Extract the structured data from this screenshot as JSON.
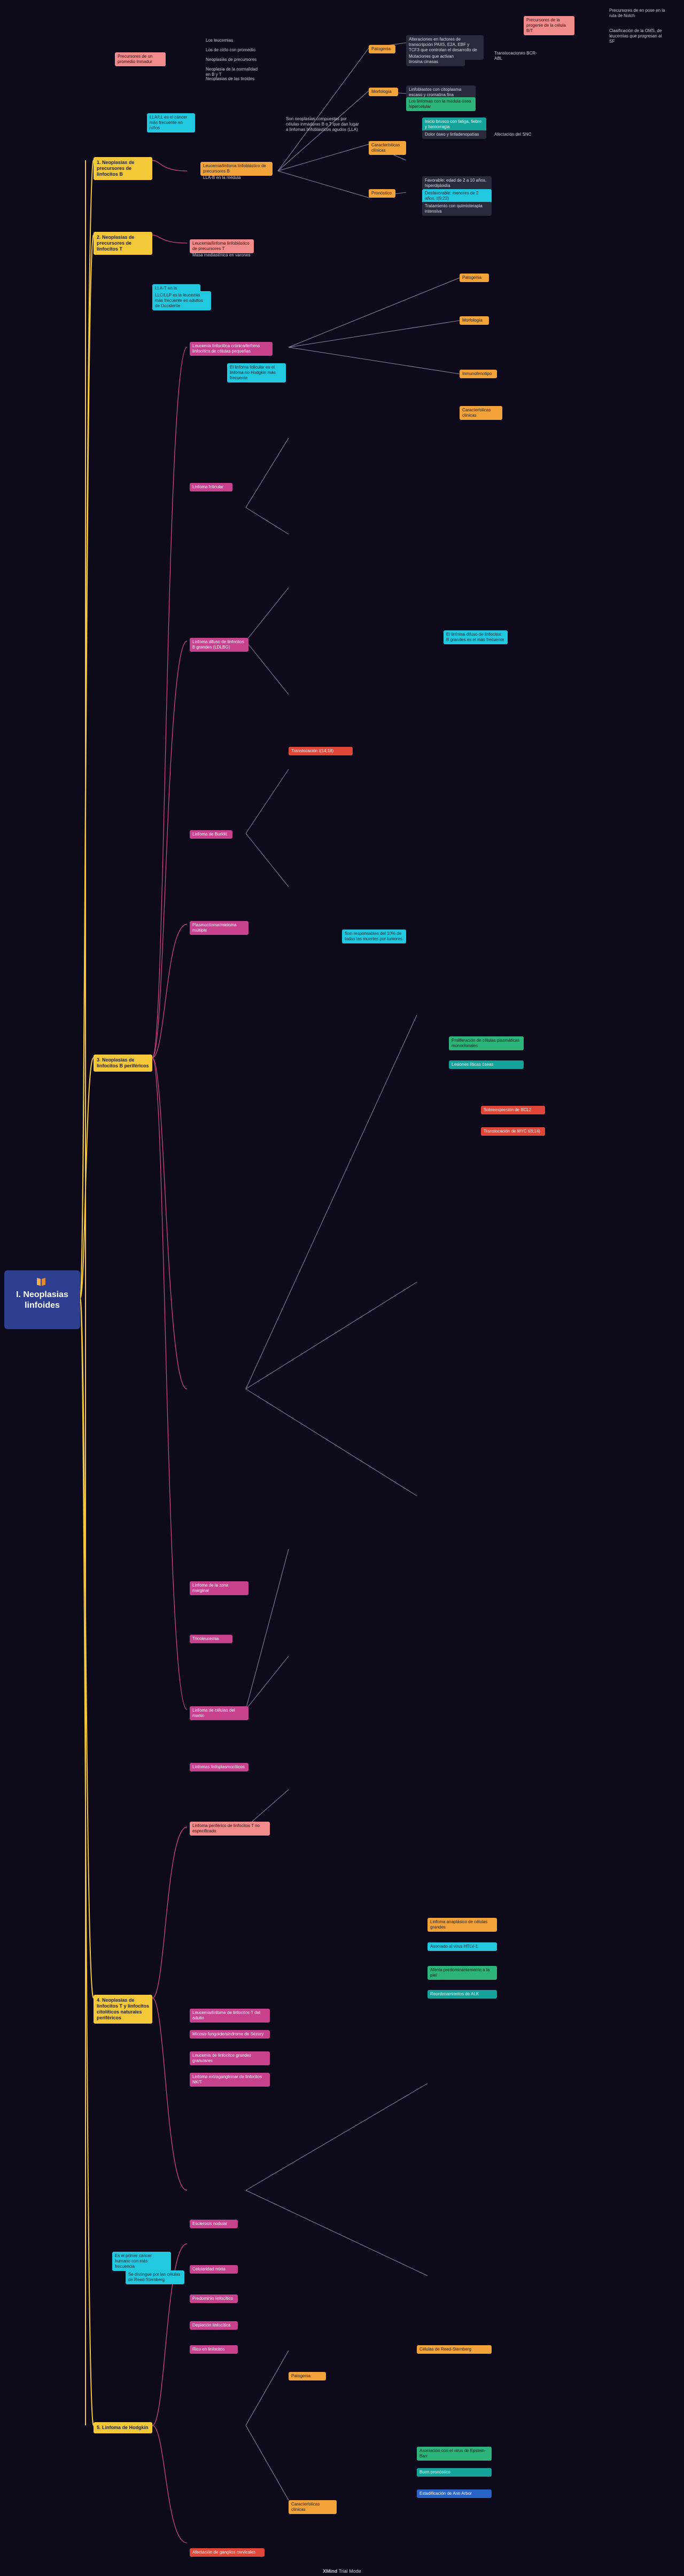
{
  "root": {
    "title": "I. Neoplasias linfoides"
  },
  "sections": [
    {
      "id": "s1",
      "label": "1. Neoplasias de precursores de linfocitos B"
    },
    {
      "id": "s2",
      "label": "2. Neoplasias de precursores de linfocitos T"
    },
    {
      "id": "s3",
      "label": "3. Neoplasias de linfocitos B periféricos"
    },
    {
      "id": "s4",
      "label": "4. Neoplasias de linfocitos T y linfocitos citolíticos naturales periféricos"
    },
    {
      "id": "s5",
      "label": "5. Linfoma de Hodgkin"
    }
  ],
  "nodes": [
    {
      "id": "top_intro",
      "text": "Precursores de la progenie de la célula B/T"
    },
    {
      "id": "top_intro_r1",
      "text": "Precursores de en pose en la ruta de Notch"
    },
    {
      "id": "top_intro_r2",
      "text": "Clasificación de la OMS, de leucemias que progresan al SF"
    },
    {
      "id": "tl_pink",
      "text": "Precursores de un promedio Inmadur"
    },
    {
      "id": "tl_a",
      "text": "Los leucemias"
    },
    {
      "id": "tl_b",
      "text": "Los de ciclo con promedio"
    },
    {
      "id": "tl_c",
      "text": "Neoplasias de precursores"
    },
    {
      "id": "tl_d",
      "text": "Neoplasia de la normalidad en B y T"
    },
    {
      "id": "tl_e",
      "text": "Neoplasias de las tiroides"
    },
    {
      "id": "s1_cyan",
      "text": "LLA/LL es el cáncer más frecuente en niños"
    },
    {
      "id": "s1_orange",
      "text": "Leucemia/linfoma linfoblástico de precursores B"
    },
    {
      "id": "s1_lbl",
      "text": "LLA-B en la médula"
    },
    {
      "id": "s1_desc",
      "text": "Son neoplasias compuestas por células inmaduras B o T que dan lugar a linfomas linfoblásticos agudos (LLA)"
    },
    {
      "id": "s1_p1",
      "text": "Patogenia"
    },
    {
      "id": "s1_p1a",
      "text": "Alteraciones en factores de transcripción PAX5, E2A, EBF y TCF3 que controlan el desarrollo de precursores"
    },
    {
      "id": "s1_p1b",
      "text": "Mutaciones que activan tirosina cinasas"
    },
    {
      "id": "s1_p1c",
      "text": "Translocaciones BCR-ABL"
    },
    {
      "id": "s1_p2",
      "text": "Morfología"
    },
    {
      "id": "s1_p2a",
      "text": "Linfoblastos con citoplasma escaso y cromatina fina"
    },
    {
      "id": "s1_p2b",
      "text": "Los linfomas con la médula ósea hipercelular"
    },
    {
      "id": "s1_p3",
      "text": "Características clínicas"
    },
    {
      "id": "s1_p3a",
      "text": "Inicio brusco con fatiga, fiebre y hemorragia"
    },
    {
      "id": "s1_p3b",
      "text": "Dolor óseo y linfadenopatías"
    },
    {
      "id": "s1_p3c",
      "text": "Afectación del SNC"
    },
    {
      "id": "s1_p4",
      "text": "Pronóstico"
    },
    {
      "id": "s1_p4a",
      "text": "Favorable: edad de 2 a 10 años, hiperdiploidía"
    },
    {
      "id": "s1_p4b",
      "text": "Desfavorable: menores de 2 años, t(9;22)"
    },
    {
      "id": "s1_p4c",
      "text": "Tratamiento con quimioterapia intensiva"
    },
    {
      "id": "s2_cyan",
      "text": "LLA-T en la adolescencia"
    },
    {
      "id": "s2_orange",
      "text": "Leucemia/linfoma linfoblástico de precursores T"
    },
    {
      "id": "s2_lbl",
      "text": "Masa mediastínica en varones"
    },
    {
      "id": "s3_cyan",
      "text": "LLC/LLP es la leucemia más frecuente en adultos de Occidente"
    },
    {
      "id": "s3_magenta",
      "text": "Leucemia linfocítica crónica/linfoma linfocítico de células pequeñas"
    },
    {
      "id": "s3_cyan2",
      "text": "El linfoma folicular es el linfoma no Hodgkin más frecuente"
    },
    {
      "id": "s3_a",
      "text": "Patogenia"
    },
    {
      "id": "s3_b",
      "text": "Morfología"
    },
    {
      "id": "s3_c",
      "text": "Inmunofenotipo"
    },
    {
      "id": "s3_d",
      "text": "Características clínicas"
    },
    {
      "id": "s3_e",
      "text": "Linfoma folicular"
    },
    {
      "id": "s3_f",
      "text": "Linfoma difuso de linfocitos B grandes (LDLBG)"
    },
    {
      "id": "s3_g",
      "text": "Linfoma de Burkitt"
    },
    {
      "id": "s3_h",
      "text": "Plasmocitoma/mieloma múltiple"
    },
    {
      "id": "s3_i",
      "text": "Linfoma de la zona marginal"
    },
    {
      "id": "s3_j",
      "text": "Tricoleucemia"
    },
    {
      "id": "s3_k",
      "text": "Linfoma de células del manto"
    },
    {
      "id": "s3_l",
      "text": "Linfomas linfoplasmocíticos"
    },
    {
      "id": "s3_cyan3",
      "text": "Son responsables del 10% de todas las muertes por tumores"
    },
    {
      "id": "s3_red1",
      "text": "Translocación t(14;18)"
    },
    {
      "id": "s3_red2",
      "text": "Sobreexpresión de BCL2"
    },
    {
      "id": "s3_red3",
      "text": "Translocación de MYC t(8;14)"
    },
    {
      "id": "s3_green1",
      "text": "Proliferación de células plasmáticas monoclonales"
    },
    {
      "id": "s3_teal1",
      "text": "Lesiones líticas óseas"
    },
    {
      "id": "s3_cyan4",
      "text": "El linfoma difuso de linfocitos B grandes es el más frecuente"
    },
    {
      "id": "s4_pink",
      "text": "Linfoma periférico de linfocitos T no especificado"
    },
    {
      "id": "s4_a",
      "text": "Leucemia/linfoma de linfocitos T del adulto"
    },
    {
      "id": "s4_b",
      "text": "Micosis fungoide/síndrome de Sézary"
    },
    {
      "id": "s4_c",
      "text": "Leucemia de linfocitos grandes granulares"
    },
    {
      "id": "s4_d",
      "text": "Linfoma extraganglionar de linfocitos NK/T"
    },
    {
      "id": "s4_green",
      "text": "Afecta predominantemente a la piel"
    },
    {
      "id": "s4_cyan",
      "text": "Asociado al virus HTLV-1"
    },
    {
      "id": "s4_orange",
      "text": "Linfoma anaplásico de células grandes"
    },
    {
      "id": "s4_teal",
      "text": "Reordenamientos de ALK"
    },
    {
      "id": "s5_cyan",
      "text": "Es el primer cáncer humano con más frecuencia"
    },
    {
      "id": "s5_cyan2",
      "text": "Se distingue por las células de Reed-Sternberg"
    },
    {
      "id": "s5_a",
      "text": "Esclerosis nodular"
    },
    {
      "id": "s5_b",
      "text": "Celularidad mixta"
    },
    {
      "id": "s5_c",
      "text": "Predominio linfocítico"
    },
    {
      "id": "s5_d",
      "text": "Depleción linfocítica"
    },
    {
      "id": "s5_e",
      "text": "Rico en linfocitos"
    },
    {
      "id": "s5_f",
      "text": "Patogenia"
    },
    {
      "id": "s5_g",
      "text": "Características clínicas"
    },
    {
      "id": "s5_orange",
      "text": "Células de Reed-Sternberg"
    },
    {
      "id": "s5_red",
      "text": "Afectación de ganglios cervicales"
    },
    {
      "id": "s5_green",
      "text": "Asociación con el virus de Epstein-Barr"
    },
    {
      "id": "s5_teal",
      "text": "Buen pronóstico"
    },
    {
      "id": "s5_blue",
      "text": "Estadificación de Ann Arbor"
    }
  ],
  "footer": {
    "brand": "XMind",
    "plan": "Trial Mode"
  }
}
